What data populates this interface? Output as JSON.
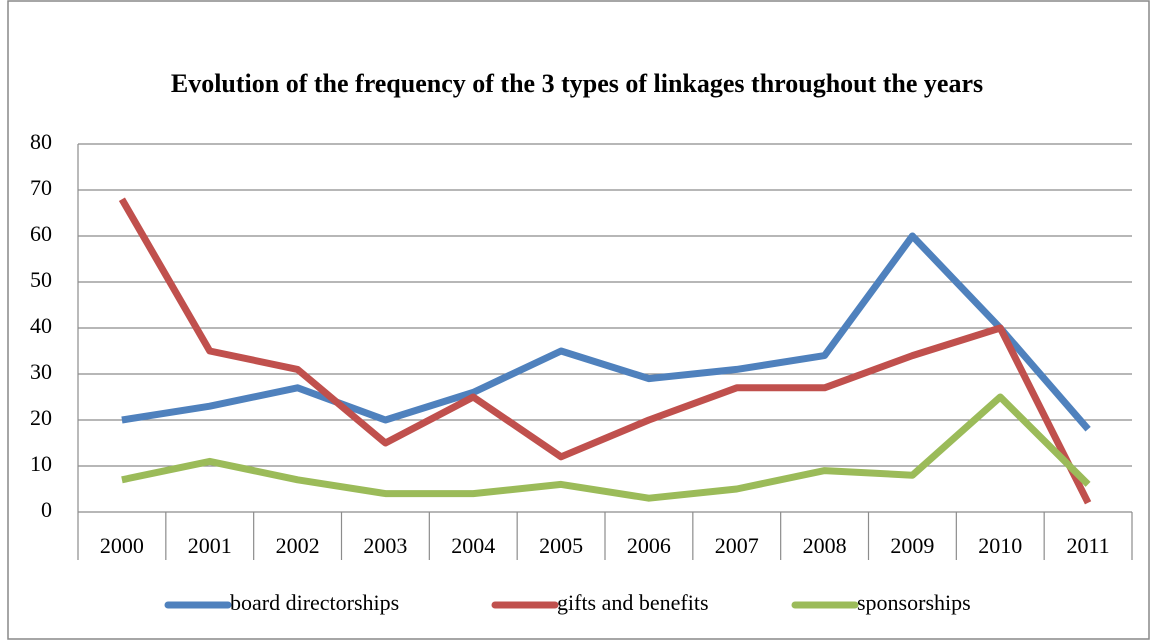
{
  "chart_data": {
    "type": "line",
    "title": "Evolution of the frequency of the 3 types of linkages throughout the years",
    "categories": [
      "2000",
      "2001",
      "2002",
      "2003",
      "2004",
      "2005",
      "2006",
      "2007",
      "2008",
      "2009",
      "2010",
      "2011"
    ],
    "series": [
      {
        "name": "board directorships",
        "color": "#4f81bd",
        "values": [
          20,
          23,
          27,
          20,
          26,
          35,
          29,
          31,
          34,
          60,
          40,
          18
        ]
      },
      {
        "name": "gifts and benefits",
        "color": "#c0504d",
        "values": [
          68,
          35,
          31,
          15,
          25,
          12,
          20,
          27,
          27,
          34,
          40,
          2
        ]
      },
      {
        "name": "sponsorships",
        "color": "#9bbb59",
        "values": [
          7,
          11,
          7,
          4,
          4,
          6,
          3,
          5,
          9,
          8,
          25,
          6
        ]
      }
    ],
    "ylim": [
      0,
      80
    ],
    "yticks": [
      0,
      10,
      20,
      30,
      40,
      50,
      60,
      70,
      80
    ],
    "grid": true,
    "legend": "bottom"
  }
}
